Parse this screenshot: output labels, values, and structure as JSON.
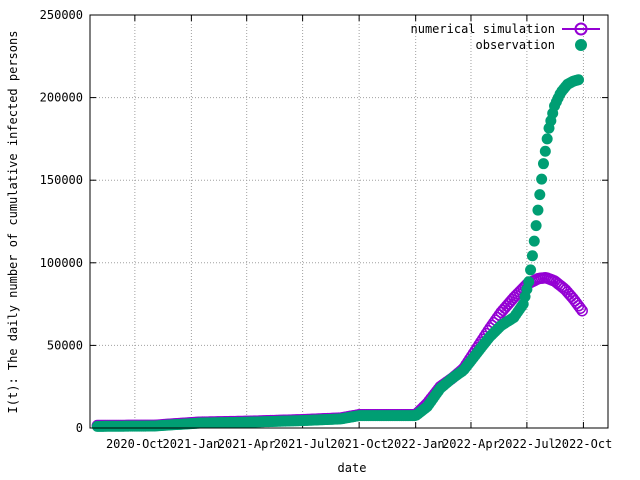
{
  "chart_data": {
    "type": "scatter",
    "xlabel": "date",
    "ylabel": "I(t): The daily number of cumulative infected persons",
    "x_ticks": [
      "2020-Oct",
      "2021-Jan",
      "2021-Apr",
      "2021-Jul",
      "2021-Oct",
      "2022-Jan",
      "2022-Apr",
      "2022-Jul",
      "2022-Oct"
    ],
    "y_ticks": [
      "0",
      "50000",
      "100000",
      "150000",
      "200000",
      "250000"
    ],
    "xlim": [
      "2020-07-20",
      "2022-11-10"
    ],
    "ylim": [
      0,
      250000
    ],
    "grid": true,
    "legend_position": "top-right",
    "series": [
      {
        "name": "numerical simulation",
        "marker": "open-circle",
        "color": "#9400d3",
        "x": [
          "2020-08-01",
          "2020-11-01",
          "2021-01-15",
          "2021-04-01",
          "2021-07-01",
          "2021-09-01",
          "2021-10-01",
          "2022-01-01",
          "2022-01-20",
          "2022-02-10",
          "2022-03-01",
          "2022-03-20",
          "2022-04-10",
          "2022-05-01",
          "2022-05-20",
          "2022-06-10",
          "2022-07-01",
          "2022-07-20",
          "2022-08-01",
          "2022-08-15",
          "2022-09-01",
          "2022-09-15",
          "2022-10-01"
        ],
        "y": [
          1500,
          1600,
          3500,
          4000,
          5000,
          6000,
          8000,
          8000,
          15000,
          25000,
          30000,
          36000,
          48000,
          60000,
          70000,
          79000,
          87000,
          90500,
          91000,
          89000,
          84000,
          78000,
          70000
        ]
      },
      {
        "name": "observation",
        "marker": "filled-circle",
        "color": "#009e73",
        "x": [
          "2020-08-01",
          "2020-11-01",
          "2021-01-15",
          "2021-04-01",
          "2021-07-01",
          "2021-09-01",
          "2021-10-01",
          "2022-01-01",
          "2022-01-20",
          "2022-02-10",
          "2022-03-01",
          "2022-03-20",
          "2022-04-10",
          "2022-05-01",
          "2022-05-20",
          "2022-06-10",
          "2022-06-25",
          "2022-07-05",
          "2022-07-12",
          "2022-07-20",
          "2022-07-28",
          "2022-08-05",
          "2022-08-15",
          "2022-08-25",
          "2022-09-05",
          "2022-09-15",
          "2022-09-25"
        ],
        "y": [
          1000,
          1200,
          3000,
          3500,
          4500,
          5500,
          7500,
          7500,
          13000,
          24000,
          30000,
          35000,
          45000,
          55000,
          62000,
          67000,
          75000,
          90000,
          110000,
          135000,
          160000,
          180000,
          195000,
          203000,
          208000,
          210000,
          211000
        ]
      }
    ]
  }
}
